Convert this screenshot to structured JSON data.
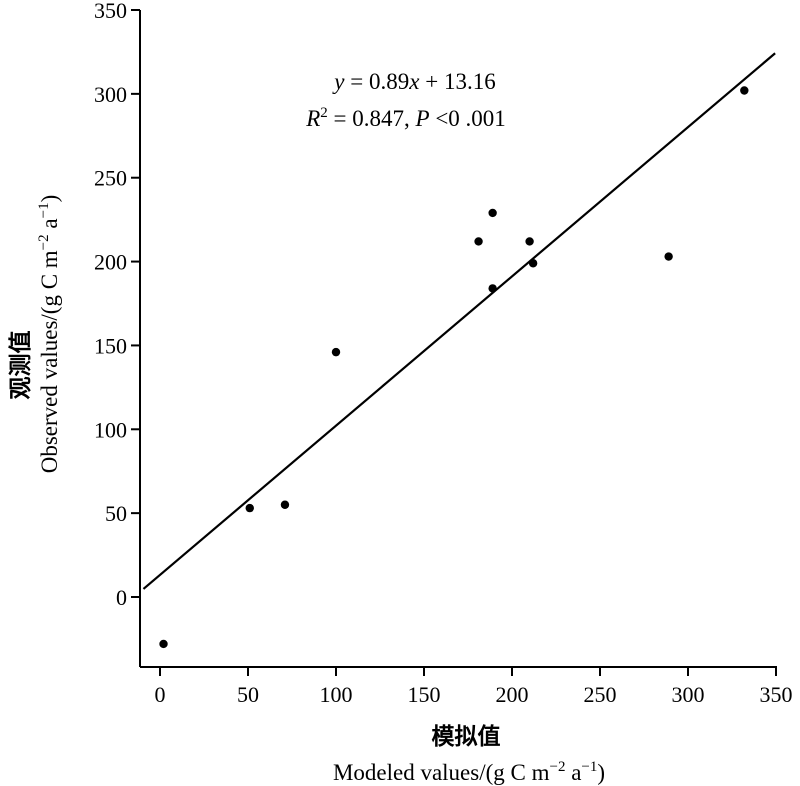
{
  "chart_data": {
    "type": "scatter",
    "xlabel_cn": "模拟值",
    "xlabel_en": "Modeled values/(g C m",
    "xlabel_sup1": "−2",
    "xlabel_mid": " a",
    "xlabel_sup2": "−1",
    "xlabel_end": ")",
    "ylabel_cn": "观测值",
    "ylabel_en": "Observed values/(g C m",
    "ylabel_sup1": "−2",
    "ylabel_mid": " a",
    "ylabel_sup2": "−1",
    "ylabel_end": ")",
    "xlim": [
      -10,
      350
    ],
    "ylim": [
      -40,
      350
    ],
    "xticks": [
      0,
      50,
      100,
      150,
      200,
      250,
      300,
      350
    ],
    "yticks": [
      0,
      50,
      100,
      150,
      200,
      250,
      300,
      350
    ],
    "points": [
      {
        "x": 2,
        "y": -28
      },
      {
        "x": 51,
        "y": 53
      },
      {
        "x": 71,
        "y": 55
      },
      {
        "x": 100,
        "y": 146
      },
      {
        "x": 181,
        "y": 212
      },
      {
        "x": 189,
        "y": 229
      },
      {
        "x": 189,
        "y": 184
      },
      {
        "x": 210,
        "y": 212
      },
      {
        "x": 212,
        "y": 199
      },
      {
        "x": 289,
        "y": 203
      },
      {
        "x": 332,
        "y": 302
      }
    ],
    "fit": {
      "slope": 0.89,
      "intercept": 13.16
    },
    "annotation": {
      "eq_y": "y",
      "eq_rest": " = 0.89",
      "eq_x": "x",
      "eq_end": " + 13.16",
      "r_letter": "R",
      "r_sup": "2",
      "r_mid": " = 0.847, ",
      "p_letter": "P",
      "p_end": " <0 .001"
    },
    "grid": false,
    "legend": "none"
  }
}
